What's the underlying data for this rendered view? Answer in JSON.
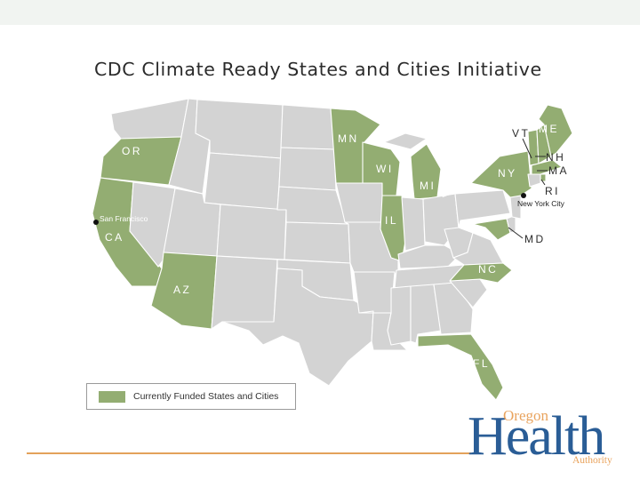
{
  "title": "CDC Climate Ready States and Cities Initiative",
  "colors": {
    "funded": "#93ad72",
    "unfunded": "#d3d3d3",
    "accent_line": "#e3a25b",
    "logo_blue": "#2a5d96",
    "logo_orange": "#e9a35d"
  },
  "states": {
    "OR": "OR",
    "CA": "CA",
    "AZ": "AZ",
    "MN": "MN",
    "WI": "WI",
    "MI": "MI",
    "IL": "IL",
    "NY": "NY",
    "VT": "VT",
    "ME": "ME",
    "NH": "NH",
    "MA": "MA",
    "RI": "RI",
    "MD": "MD",
    "NC": "NC",
    "FL": "FL"
  },
  "cities": {
    "san_francisco": "San Francisco",
    "new_york_city": "New York City"
  },
  "legend": {
    "label": "Currently Funded States and Cities"
  },
  "logo": {
    "line1": "Oregon",
    "line2": "Health",
    "line3": "Authority"
  }
}
